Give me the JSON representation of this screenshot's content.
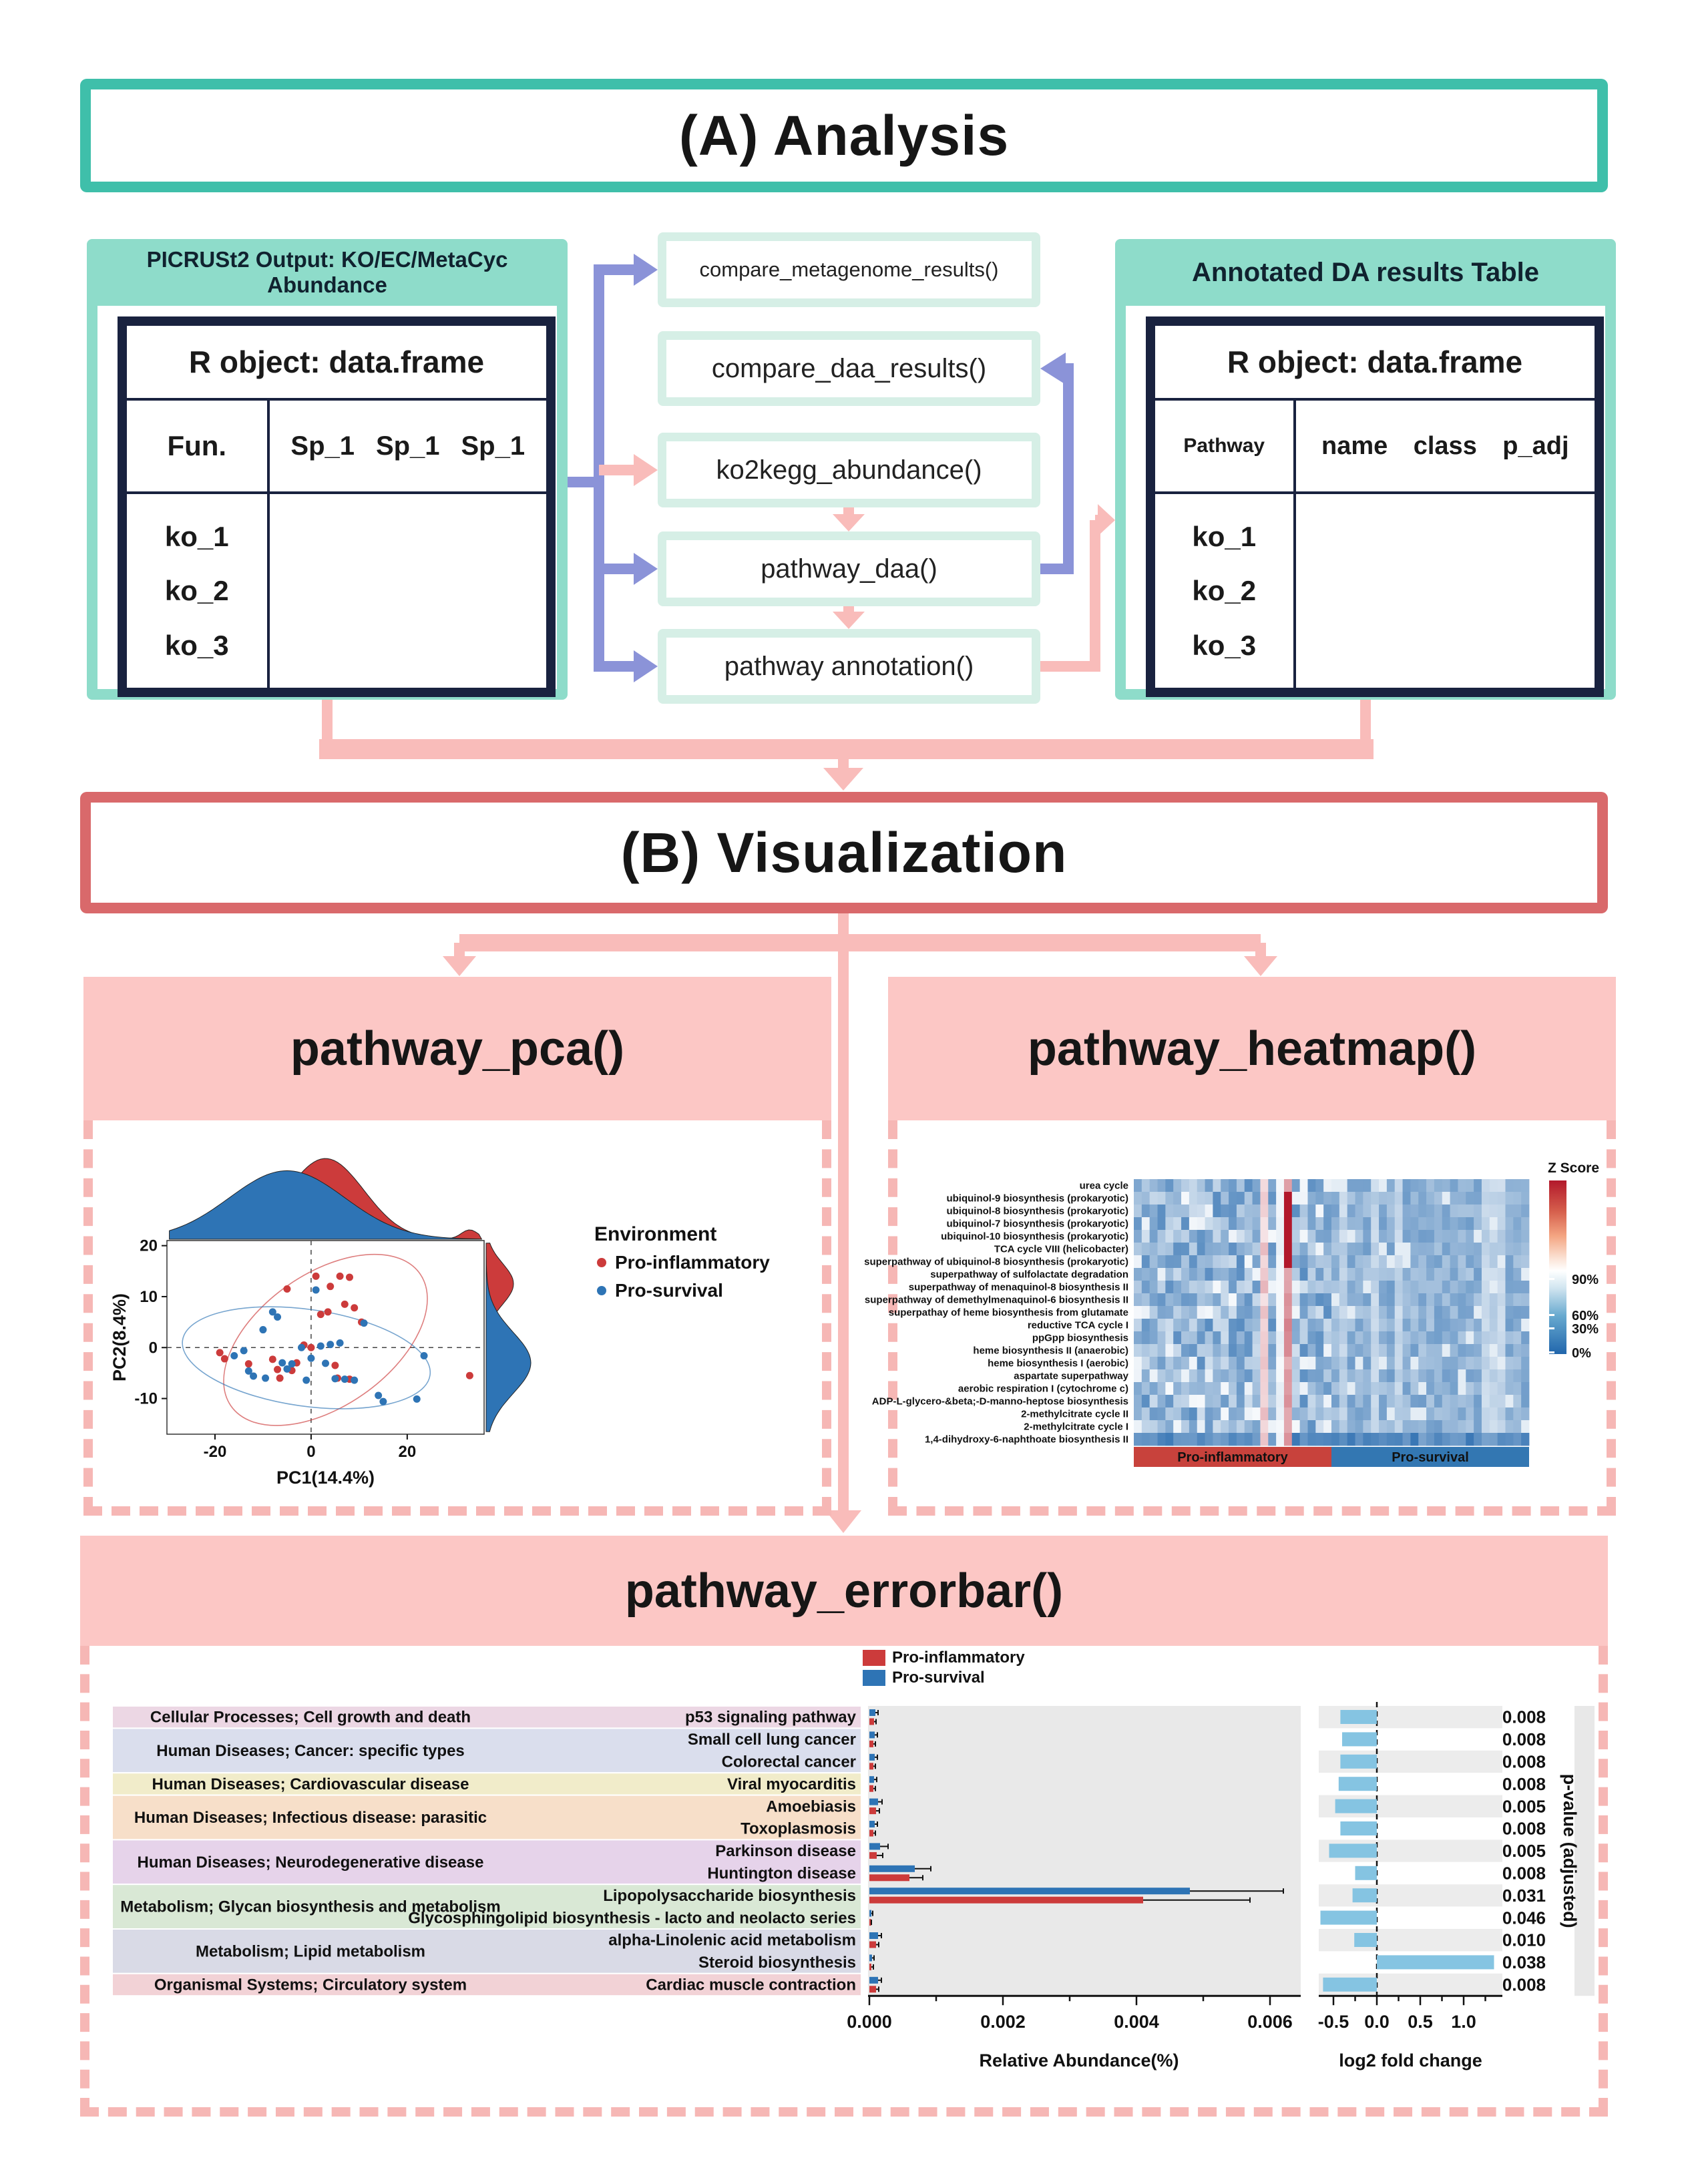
{
  "section_a": {
    "title": "(A) Analysis",
    "left_box": {
      "header": "PICRUSt2 Output: KO/EC/MetaCyc Abundance",
      "table_title": "R object: data.frame",
      "key_column": "Fun.",
      "value_columns": [
        "Sp_1",
        "Sp_1",
        "Sp_1"
      ],
      "rows": [
        "ko_1",
        "ko_2",
        "ko_3"
      ]
    },
    "functions": [
      "compare_metagenome_results()",
      "compare_daa_results()",
      "ko2kegg_abundance()",
      "pathway_daa()",
      "pathway annotation()"
    ],
    "right_box": {
      "header": "Annotated DA results Table",
      "table_title": "R object: data.frame",
      "key_column": "Pathway",
      "value_columns": [
        "name",
        "class",
        "p_adj"
      ],
      "rows": [
        "ko_1",
        "ko_2",
        "ko_3"
      ]
    }
  },
  "section_b": {
    "title": "(B) Visualization"
  },
  "panels": {
    "pca": {
      "title": "pathway_pca()"
    },
    "heatmap": {
      "title": "pathway_heatmap()"
    },
    "errorbar": {
      "title": "pathway_errorbar()"
    }
  },
  "colors": {
    "teal_border": "#3FBFAA",
    "teal_bg": "#8EDCCA",
    "mint": "#D6EFE6",
    "navy": "#19223F",
    "purple_arrow": "#8B93D8",
    "pink_arrow": "#F9BCBA",
    "red_border": "#D9696B",
    "panel_pink": "#FCC7C5",
    "dashed_pink": "#F6B7B5",
    "inflammatory_red": "#CC3B3B",
    "survival_blue": "#2E74B5",
    "log2_bar": "#85C4E2"
  },
  "chart_data": [
    {
      "type": "scatter",
      "title": "pathway_pca()",
      "xlabel": "PC1(14.4%)",
      "ylabel": "PC2(8.4%)",
      "xlim": [
        -30,
        36
      ],
      "ylim": [
        -17,
        21
      ],
      "xticks": [
        -20,
        0,
        20
      ],
      "yticks": [
        -10,
        0,
        10,
        20
      ],
      "legend_title": "Environment",
      "series": [
        {
          "name": "Pro-inflammatory",
          "color": "#CC3B3B",
          "points": [
            [
              -19,
              -1
            ],
            [
              -18,
              -2.2
            ],
            [
              -13,
              -3.2
            ],
            [
              -8,
              -2.3
            ],
            [
              -7,
              -4.3
            ],
            [
              -6.5,
              -6
            ],
            [
              -5,
              11.5
            ],
            [
              -4,
              -4.5
            ],
            [
              -3,
              -3
            ],
            [
              -1.5,
              0.5
            ],
            [
              0,
              0
            ],
            [
              1,
              14
            ],
            [
              2,
              6.5
            ],
            [
              3.5,
              7
            ],
            [
              4,
              12
            ],
            [
              5,
              -3.5
            ],
            [
              6,
              14
            ],
            [
              7,
              8.5
            ],
            [
              8,
              13.8
            ],
            [
              9,
              7.8
            ],
            [
              10.5,
              5
            ],
            [
              5.5,
              -6
            ],
            [
              8,
              -6.2
            ],
            [
              33,
              -5.5
            ]
          ],
          "ellipse": {
            "cx": 3,
            "cy": 1.5,
            "rx": 24,
            "ry": 13,
            "angle": -35
          },
          "density_top": {
            "mean": 3,
            "sd": 8,
            "h": 1.12
          },
          "density_right": {
            "mean": 12.5,
            "sd": 4,
            "h": 0.38
          }
        },
        {
          "name": "Pro-survival",
          "color": "#2E74B5",
          "points": [
            [
              -16,
              -1.6
            ],
            [
              -14,
              -0.6
            ],
            [
              -13,
              -4.6
            ],
            [
              -12,
              -5.6
            ],
            [
              -10,
              3.5
            ],
            [
              -9.5,
              -6
            ],
            [
              -8,
              7
            ],
            [
              -7,
              6
            ],
            [
              -6,
              -3
            ],
            [
              -5,
              -4.2
            ],
            [
              -4,
              -3.2
            ],
            [
              -2,
              0
            ],
            [
              -1,
              -6.4
            ],
            [
              0,
              -2.1
            ],
            [
              1,
              11.3
            ],
            [
              2,
              0.3
            ],
            [
              3,
              -3.1
            ],
            [
              4,
              0.6
            ],
            [
              5,
              -6.1
            ],
            [
              6,
              0.9
            ],
            [
              7,
              -6.2
            ],
            [
              9,
              -6.4
            ],
            [
              11,
              4.8
            ],
            [
              14,
              -9.4
            ],
            [
              15,
              -10.6
            ],
            [
              22,
              -10.1
            ],
            [
              23.5,
              -1.6
            ]
          ],
          "ellipse": {
            "cx": -1,
            "cy": -2,
            "rx": 26,
            "ry": 9.5,
            "angle": 8
          },
          "density_top": {
            "mean": -5,
            "sd": 12,
            "h": 0.95
          },
          "density_right": {
            "mean": -3,
            "sd": 6,
            "h": 0.62
          }
        }
      ]
    },
    {
      "type": "heatmap",
      "title": "pathway_heatmap()",
      "rows": [
        "urea cycle",
        "ubiquinol-9 biosynthesis (prokaryotic)",
        "ubiquinol-8 biosynthesis (prokaryotic)",
        "ubiquinol-7 biosynthesis (prokaryotic)",
        "ubiquinol-10 biosynthesis (prokaryotic)",
        "TCA cycle VIII (helicobacter)",
        "superpathway of ubiquinol-8 biosynthesis (prokaryotic)",
        "superpathway of sulfolactate degradation",
        "superpathway of menaquinol-8 biosynthesis II",
        "superpathway of demethylmenaquinol-6 biosynthesis II",
        "superpathay of heme biosynthesis from glutamate",
        "reductive TCA cycle I",
        "ppGpp biosynthesis",
        "heme biosynthesis II (anaerobic)",
        "heme biosynthesis I (aerobic)",
        "aspartate superpathway",
        "aerobic respiration I (cytochrome c)",
        "ADP-L-glycero-&beta;-D-manno-heptose biosynthesis",
        "2-methylcitrate cycle II",
        "2-methylcitrate cycle I",
        "1,4-dihydroxy-6-naphthoate biosynthesis II"
      ],
      "n_cols": 50,
      "groups": [
        {
          "name": "Pro-inflammatory",
          "color": "#C8423C",
          "cols": 25
        },
        {
          "name": "Pro-survival",
          "color": "#3377B2",
          "cols": 25
        }
      ],
      "legend": {
        "title": "Z Score",
        "tick_labels": [
          "90%",
          "60%",
          "30%",
          "0%"
        ]
      },
      "highlight": {
        "deep_red_col": 19,
        "deep_red_rows": [
          1,
          2,
          3,
          4,
          5,
          6
        ]
      }
    },
    {
      "type": "bar",
      "title": "pathway_errorbar()",
      "legend": [
        {
          "name": "Pro-inflammatory",
          "color": "#CC3B3B"
        },
        {
          "name": "Pro-survival",
          "color": "#2E74B5"
        }
      ],
      "abundance_axis": {
        "label": "Relative Abundance(%)",
        "ticks": [
          "0.000",
          "0.002",
          "0.004",
          "0.006"
        ],
        "tick_values": [
          0,
          0.002,
          0.004,
          0.006
        ],
        "max": 0.0063
      },
      "log2_axis": {
        "label": "log2 fold change",
        "ticks": [
          "-0.5",
          "0.0",
          "0.5",
          "1.0"
        ],
        "tick_values": [
          -0.5,
          0,
          0.5,
          1.0
        ]
      },
      "pvalue_label": "p-value (adjusted)",
      "groups": [
        {
          "label": "Cellular Processes; Cell growth and death",
          "color": "#ECD7E4",
          "rows": [
            0
          ]
        },
        {
          "label": "Human Diseases; Cancer: specific types",
          "color": "#DADEED",
          "rows": [
            1,
            2
          ]
        },
        {
          "label": "Human Diseases; Cardiovascular disease",
          "color": "#F1ECCA",
          "rows": [
            3
          ]
        },
        {
          "label": "Human Diseases; Infectious disease: parasitic",
          "color": "#F7DFC9",
          "rows": [
            4,
            5
          ]
        },
        {
          "label": "Human Diseases; Neurodegenerative disease",
          "color": "#E6D3EA",
          "rows": [
            6,
            7
          ]
        },
        {
          "label": "Metabolism; Glycan biosynthesis and metabolism",
          "color": "#D9E8D5",
          "rows": [
            8,
            9
          ]
        },
        {
          "label": "Metabolism; Lipid metabolism",
          "color": "#D9DAE6",
          "rows": [
            10,
            11
          ]
        },
        {
          "label": "Organismal Systems; Circulatory system",
          "color": "#F2D2D6",
          "rows": [
            12
          ]
        }
      ],
      "rows": [
        {
          "pathway": "p53 signaling pathway",
          "survival": [
            9e-05,
            4e-05
          ],
          "inflammatory": [
            7e-05,
            3e-05
          ],
          "log2fc": -0.42,
          "p_adj": "0.008"
        },
        {
          "pathway": "Small cell lung cancer",
          "survival": [
            8e-05,
            4e-05
          ],
          "inflammatory": [
            6e-05,
            3e-05
          ],
          "log2fc": -0.4,
          "p_adj": "0.008"
        },
        {
          "pathway": "Colorectal cancer",
          "survival": [
            8e-05,
            4e-05
          ],
          "inflammatory": [
            6e-05,
            3e-05
          ],
          "log2fc": -0.42,
          "p_adj": "0.008"
        },
        {
          "pathway": "Viral myocarditis",
          "survival": [
            7e-05,
            4e-05
          ],
          "inflammatory": [
            6e-05,
            3e-05
          ],
          "log2fc": -0.44,
          "p_adj": "0.008"
        },
        {
          "pathway": "Amoebiasis",
          "survival": [
            0.00013,
            6e-05
          ],
          "inflammatory": [
            0.0001,
            5e-05
          ],
          "log2fc": -0.48,
          "p_adj": "0.005"
        },
        {
          "pathway": "Toxoplasmosis",
          "survival": [
            8e-05,
            4e-05
          ],
          "inflammatory": [
            6e-05,
            3e-05
          ],
          "log2fc": -0.42,
          "p_adj": "0.008"
        },
        {
          "pathway": "Parkinson disease",
          "survival": [
            0.00016,
            0.00012
          ],
          "inflammatory": [
            0.00011,
            9e-05
          ],
          "log2fc": -0.55,
          "p_adj": "0.005"
        },
        {
          "pathway": "Huntington disease",
          "survival": [
            0.00068,
            0.00024
          ],
          "inflammatory": [
            0.0006,
            0.0002
          ],
          "log2fc": -0.25,
          "p_adj": "0.008"
        },
        {
          "pathway": "Lipopolysaccharide biosynthesis",
          "survival": [
            0.0048,
            0.0014
          ],
          "inflammatory": [
            0.0041,
            0.0016
          ],
          "log2fc": -0.28,
          "p_adj": "0.031"
        },
        {
          "pathway": "Glycosphingolipid biosynthesis - lacto and neolacto series",
          "survival": [
            3e-05,
            2e-05
          ],
          "inflammatory": [
            2e-05,
            1e-05
          ],
          "log2fc": -0.65,
          "p_adj": "0.046"
        },
        {
          "pathway": "alpha-Linolenic acid metabolism",
          "survival": [
            0.00013,
            5e-05
          ],
          "inflammatory": [
            0.0001,
            4e-05
          ],
          "log2fc": -0.26,
          "p_adj": "0.010"
        },
        {
          "pathway": "Steroid biosynthesis",
          "survival": [
            4e-05,
            3e-05
          ],
          "inflammatory": [
            3e-05,
            3e-05
          ],
          "log2fc": 1.35,
          "p_adj": "0.038"
        },
        {
          "pathway": "Cardiac muscle contraction",
          "survival": [
            0.00013,
            5e-05
          ],
          "inflammatory": [
            0.0001,
            4e-05
          ],
          "log2fc": -0.62,
          "p_adj": "0.008"
        }
      ]
    }
  ]
}
